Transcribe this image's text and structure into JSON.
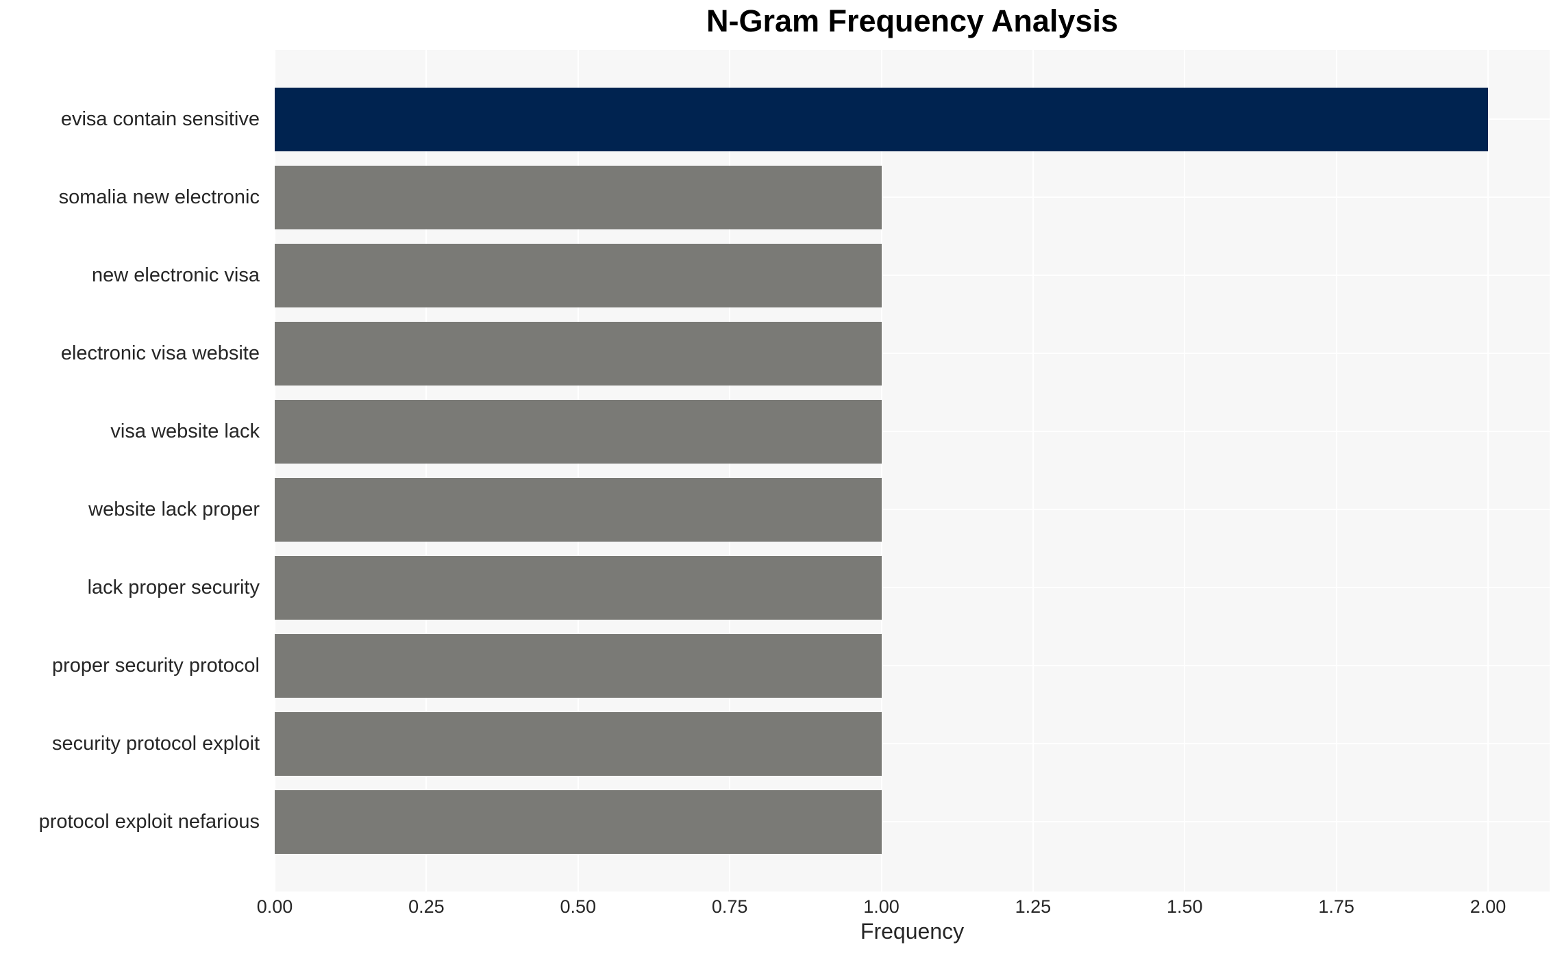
{
  "chart_data": {
    "type": "bar",
    "orientation": "horizontal",
    "title": "N-Gram Frequency Analysis",
    "xlabel": "Frequency",
    "ylabel": "",
    "categories": [
      "evisa contain sensitive",
      "somalia new electronic",
      "new electronic visa",
      "electronic visa website",
      "visa website lack",
      "website lack proper",
      "lack proper security",
      "proper security protocol",
      "security protocol exploit",
      "protocol exploit nefarious"
    ],
    "values": [
      2,
      1,
      1,
      1,
      1,
      1,
      1,
      1,
      1,
      1
    ],
    "bar_colors": [
      "#002350",
      "#7a7a76",
      "#7a7a76",
      "#7a7a76",
      "#7a7a76",
      "#7a7a76",
      "#7a7a76",
      "#7a7a76",
      "#7a7a76",
      "#7a7a76"
    ],
    "xtick_labels": [
      "0.00",
      "0.25",
      "0.50",
      "0.75",
      "1.00",
      "1.25",
      "1.50",
      "1.75",
      "2.00"
    ],
    "xtick_values": [
      0,
      0.25,
      0.5,
      0.75,
      1.0,
      1.25,
      1.5,
      1.75,
      2.0
    ],
    "xlim": [
      0,
      2.1
    ],
    "grid": true,
    "legend": false,
    "colors": {
      "highlight_bar": "#002350",
      "default_bar": "#7a7a76",
      "plot_background": "#f7f7f7",
      "gridline": "#ffffff",
      "tick_text": "#262626",
      "title_text": "#000000"
    }
  }
}
